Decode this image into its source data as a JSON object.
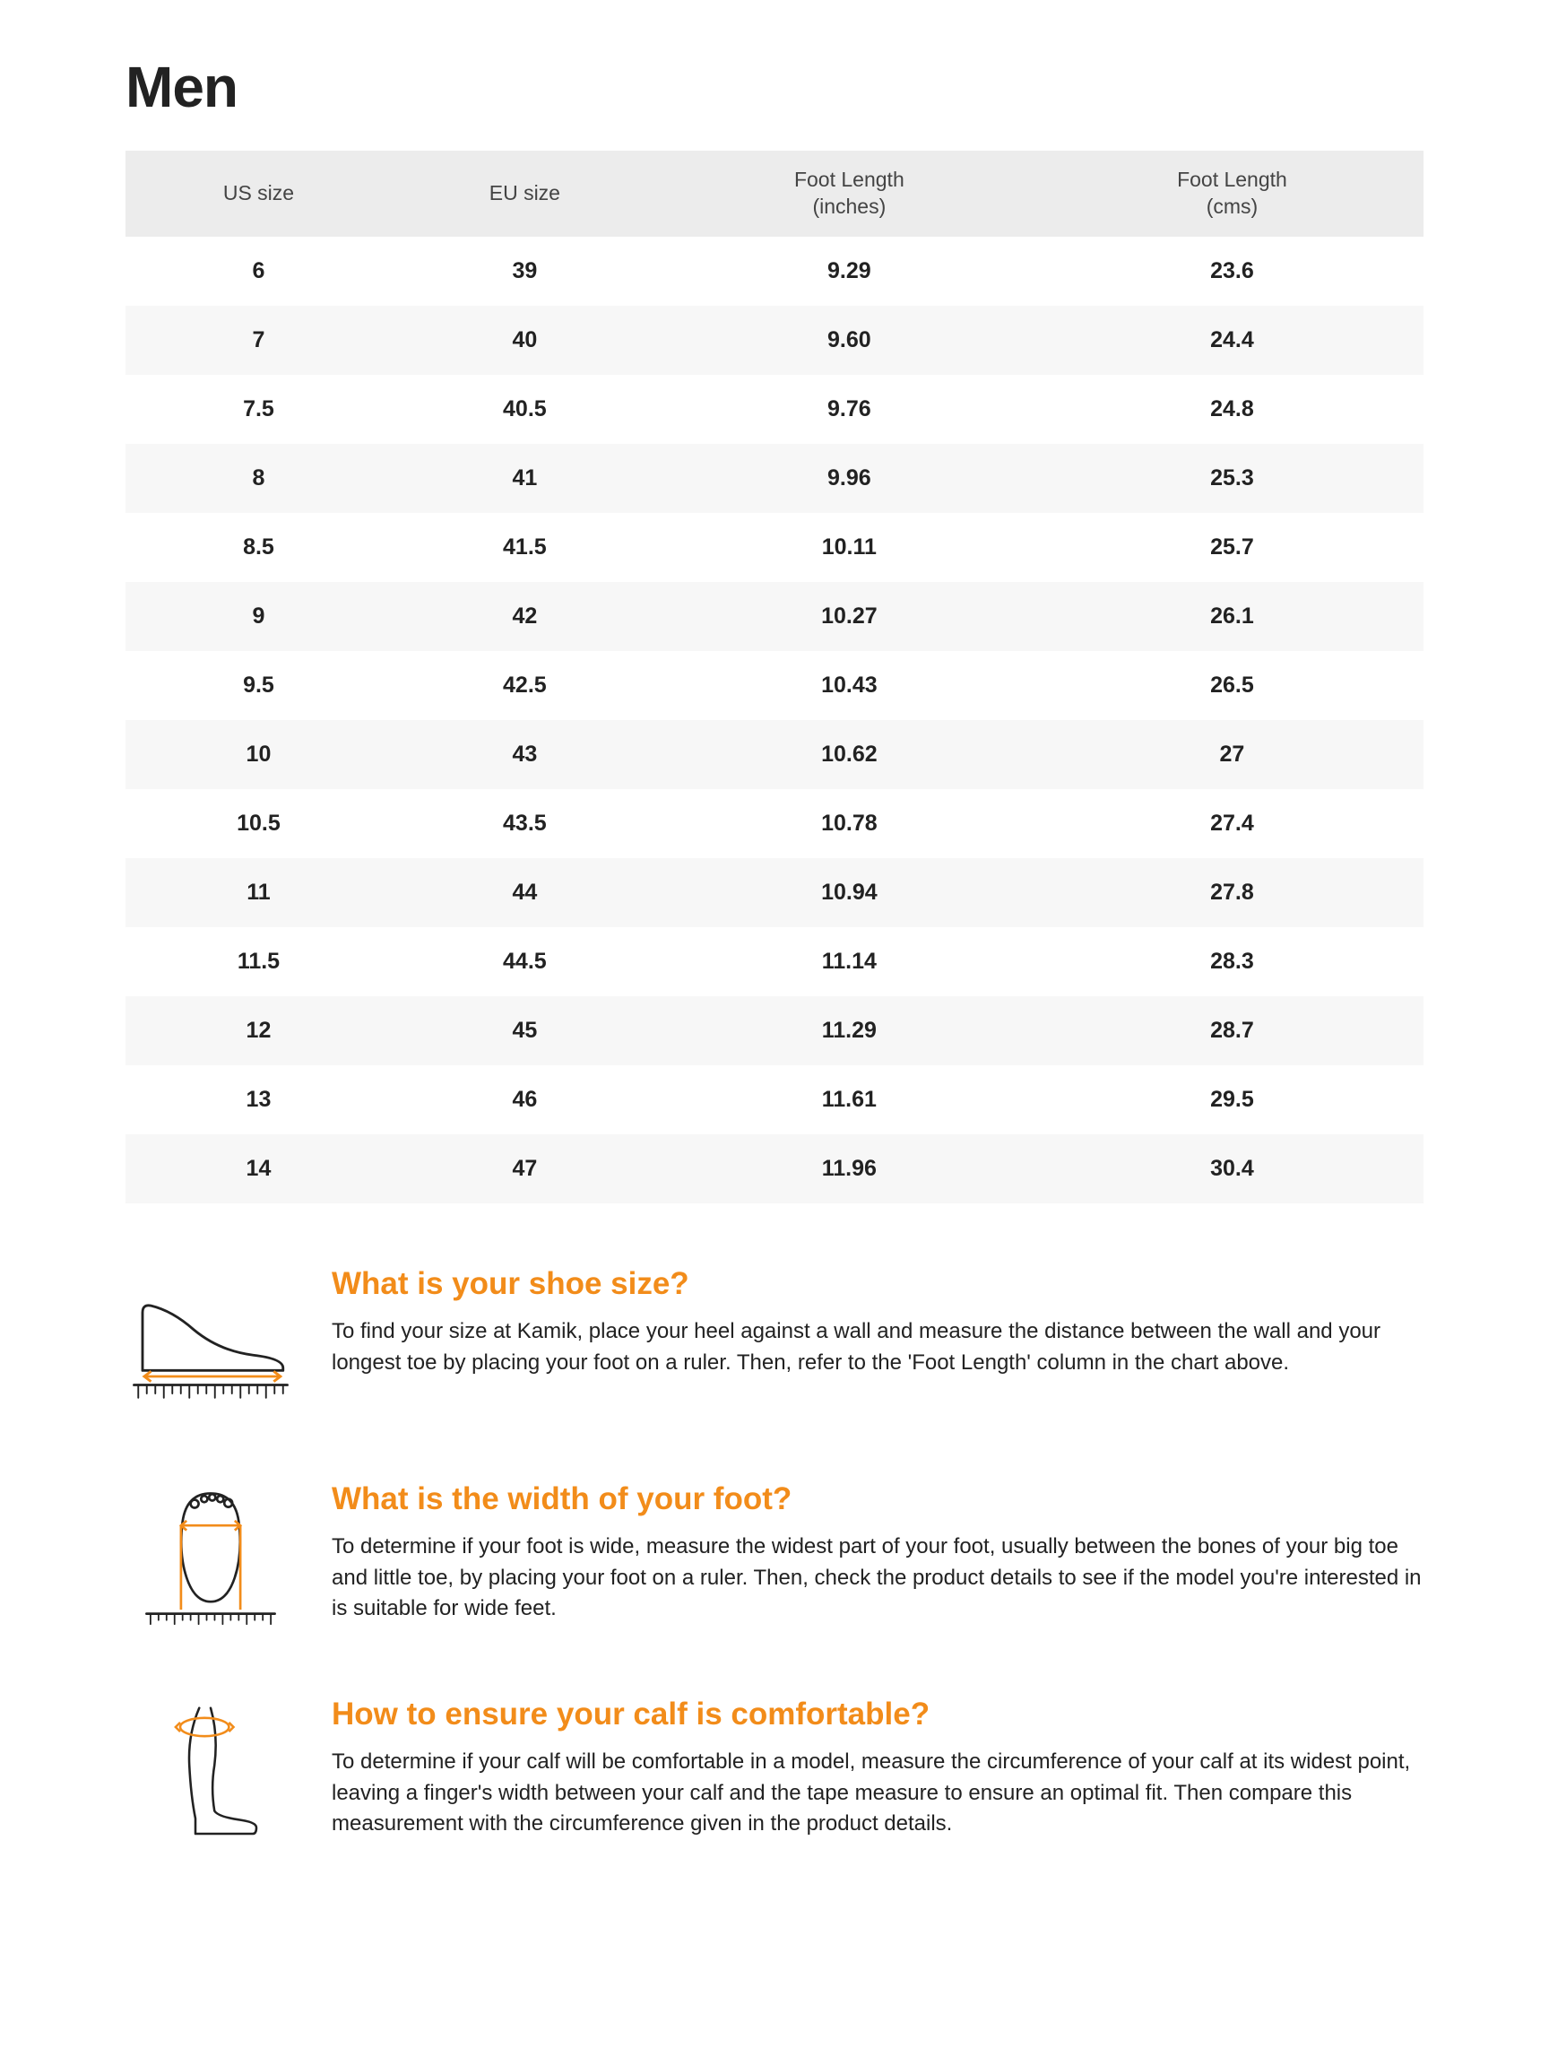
{
  "title": "Men",
  "table": {
    "columns": [
      "US size",
      "EU size",
      "Foot Length\n(inches)",
      "Foot Length\n(cms)"
    ],
    "rows": [
      [
        "6",
        "39",
        "9.29",
        "23.6"
      ],
      [
        "7",
        "40",
        "9.60",
        "24.4"
      ],
      [
        "7.5",
        "40.5",
        "9.76",
        "24.8"
      ],
      [
        "8",
        "41",
        "9.96",
        "25.3"
      ],
      [
        "8.5",
        "41.5",
        "10.11",
        "25.7"
      ],
      [
        "9",
        "42",
        "10.27",
        "26.1"
      ],
      [
        "9.5",
        "42.5",
        "10.43",
        "26.5"
      ],
      [
        "10",
        "43",
        "10.62",
        "27"
      ],
      [
        "10.5",
        "43.5",
        "10.78",
        "27.4"
      ],
      [
        "11",
        "44",
        "10.94",
        "27.8"
      ],
      [
        "11.5",
        "44.5",
        "11.14",
        "28.3"
      ],
      [
        "12",
        "45",
        "11.29",
        "28.7"
      ],
      [
        "13",
        "46",
        "11.61",
        "29.5"
      ],
      [
        "14",
        "47",
        "11.96",
        "30.4"
      ]
    ],
    "header_bg": "#ececec",
    "row_alt_bg": "#f7f7f7",
    "cell_font_weight": 700,
    "header_font_weight": 400
  },
  "accent_color": "#f28c1a",
  "text_color": "#222222",
  "background_color": "#ffffff",
  "info": [
    {
      "icon": "foot-side-ruler",
      "heading": "What is your shoe size?",
      "body": "To find your size at Kamik, place your heel against a wall and measure the distance between the wall and your longest toe by placing your foot on a ruler. Then, refer to the 'Foot Length' column in the chart above."
    },
    {
      "icon": "foot-top-ruler",
      "heading": "What is the width of your foot?",
      "body": "To determine if your foot is wide, measure the widest part of your foot, usually between the bones of your big toe and little toe, by placing your foot on a ruler. Then, check the product details to see if the model you're interested in is suitable for wide feet."
    },
    {
      "icon": "calf-measure",
      "heading": "How to ensure your calf is comfortable?",
      "body": "To determine if your calf will be comfortable in a model, measure the circumference of your calf at its widest point, leaving a finger's width between your calf and the tape measure to ensure an optimal fit. Then compare this measurement with the circumference given in the product details."
    }
  ]
}
